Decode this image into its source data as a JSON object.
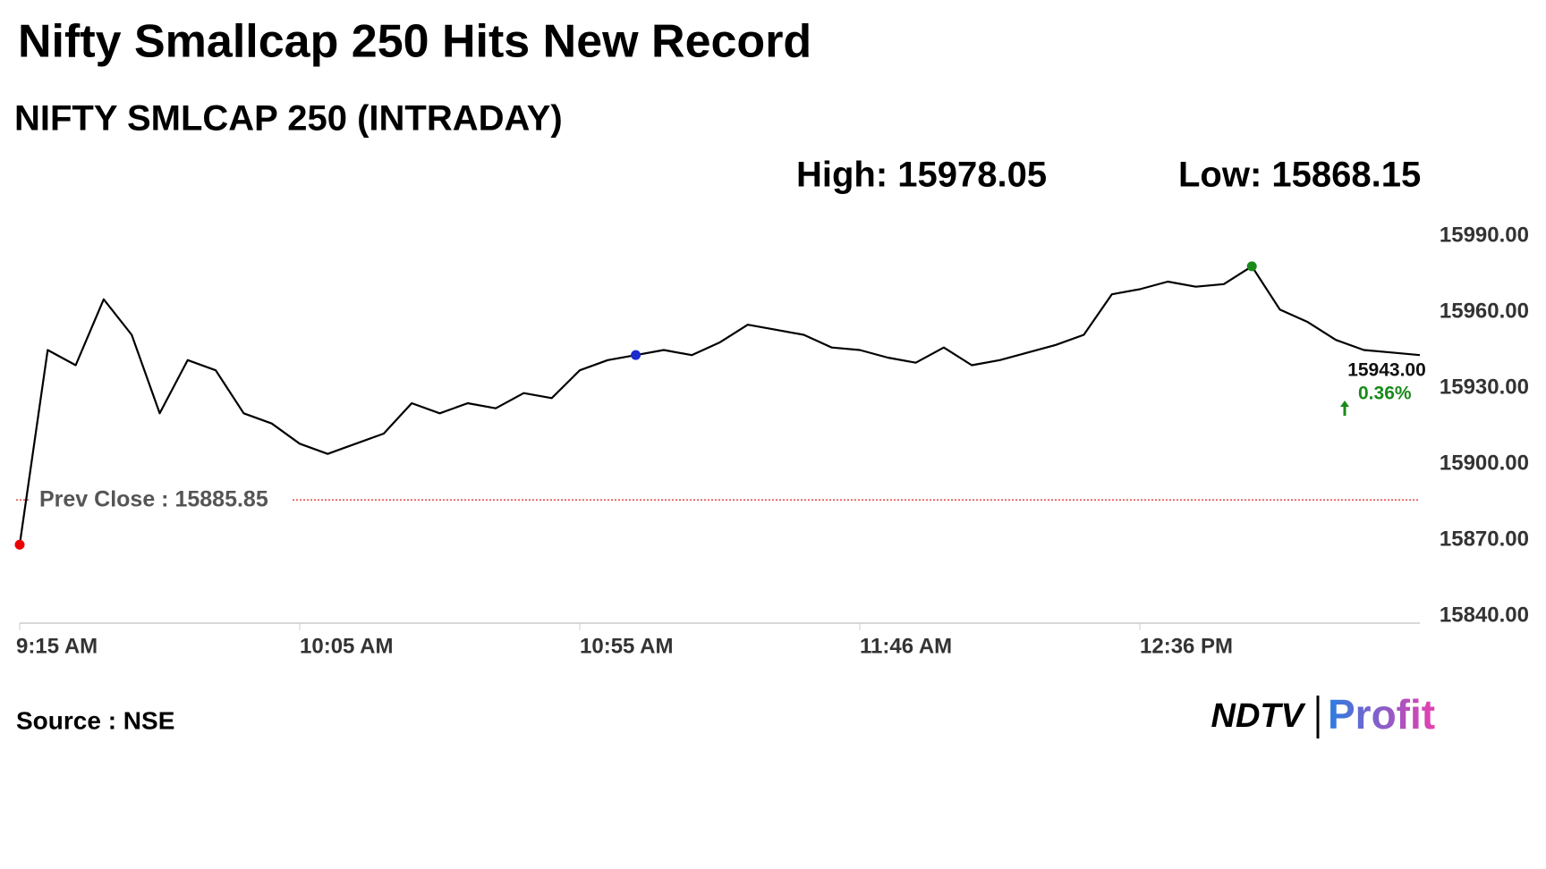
{
  "chart_data": {
    "type": "line",
    "title": "Nifty Smallcap 250 Hits New Record",
    "subtitle": "NIFTY SMLCAP 250 (INTRADAY)",
    "high": {
      "value": 15978.05,
      "label": "High: 15978.05"
    },
    "low": {
      "value": 15868.15,
      "label": "Low: 15868.15"
    },
    "prev_close": {
      "value": 15885.85,
      "label": "Prev Close : 15885.85"
    },
    "last": {
      "value": 15943,
      "label": "15943.00"
    },
    "change": {
      "value": 0.36,
      "label": "0.36%"
    },
    "categories": [
      "9:15 AM",
      null,
      null,
      null,
      null,
      null,
      null,
      null,
      null,
      null,
      "10:05 AM",
      null,
      null,
      null,
      null,
      null,
      null,
      null,
      null,
      null,
      "10:55 AM",
      null,
      null,
      null,
      null,
      null,
      null,
      null,
      null,
      null,
      "11:46 AM",
      null,
      null,
      null,
      null,
      null,
      null,
      null,
      null,
      null,
      "12:36 PM",
      null,
      null,
      null,
      null,
      null,
      null,
      null,
      null,
      null,
      null
    ],
    "series": [
      {
        "name": "NIFTY SMLCAP 250",
        "color": "#000000",
        "values": [
          15868.15,
          15945,
          15939,
          15965,
          15951,
          15920,
          15941,
          15937,
          15920,
          15916,
          15908,
          15904,
          15908,
          15912,
          15924,
          15920,
          15924,
          15922,
          15928,
          15926,
          15937,
          15941,
          15943,
          15945,
          15943,
          15948,
          15955,
          15953,
          15951,
          15946,
          15945,
          15942,
          15940,
          15946,
          15939,
          15941,
          15944,
          15947,
          15951,
          15967,
          15969,
          15972,
          15970,
          15971,
          15978.05,
          15961,
          15956,
          15949,
          15945,
          15944,
          15943
        ]
      }
    ],
    "ylim": [
      15840,
      15990
    ],
    "yticks": [
      {
        "value": 15840,
        "label": "15840.00"
      },
      {
        "value": 15870,
        "label": "15870.00"
      },
      {
        "value": 15900,
        "label": "15900.00"
      },
      {
        "value": 15930,
        "label": "15930.00"
      },
      {
        "value": 15960,
        "label": "15960.00"
      },
      {
        "value": 15990,
        "label": "15990.00"
      }
    ],
    "grid": false,
    "source": "Source : NSE",
    "logo": [
      "NDTV",
      "Profit"
    ]
  }
}
